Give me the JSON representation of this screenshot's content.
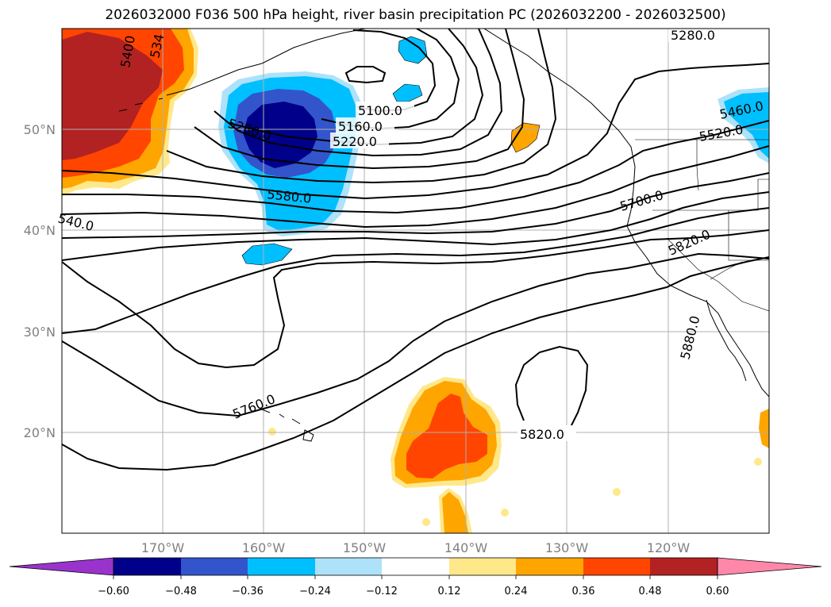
{
  "title": "2026032000 F036 500 hPa height, river basin precipitation PC (2026032200 - 2026032500)",
  "colors": {
    "below_min": "#9933cc",
    "bins": [
      "#00008b",
      "#3355cc",
      "#00bfff",
      "#ade2fa",
      "#ffffff",
      "#ffe88a",
      "#ffa500",
      "#ff4500",
      "#b22222"
    ],
    "above_max": "#ff88aa"
  },
  "axes": {
    "lat_labels": [
      "50°N",
      "40°N",
      "30°N",
      "20°N"
    ],
    "lon_labels": [
      "170°W",
      "160°W",
      "150°W",
      "140°W",
      "130°W",
      "120°W"
    ]
  },
  "colorbar": {
    "tick_labels": [
      "−0.60",
      "−0.48",
      "−0.36",
      "−0.24",
      "−0.12",
      "0.12",
      "0.24",
      "0.36",
      "0.48",
      "0.60"
    ]
  },
  "contour_labels": [
    "5280.0",
    "5400",
    "534",
    "5100.0",
    "5160.0",
    "5220.0",
    "5280.0",
    "5580.0",
    "540.0",
    "5460.0",
    "5520.0",
    "5700.0",
    "5820.0",
    "5880.0",
    "5760.0",
    "5820.0"
  ]
}
